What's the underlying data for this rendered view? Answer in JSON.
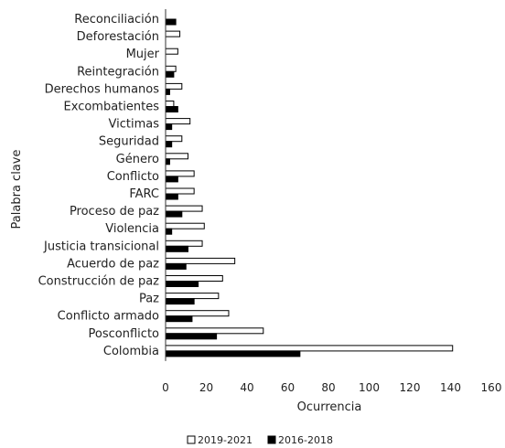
{
  "chart_data": {
    "type": "bar",
    "orientation": "horizontal",
    "title": "",
    "xlabel": "Ocurrencia",
    "ylabel": "Palabra clave",
    "xlim": [
      0,
      160
    ],
    "xticks": [
      0,
      20,
      40,
      60,
      80,
      100,
      120,
      140,
      160
    ],
    "grid": false,
    "legend_position": "bottom",
    "categories": [
      "Reconciliación",
      "Deforestación",
      "Mujer",
      "Reintegración",
      "Derechos humanos",
      "Excombatientes",
      "Victimas",
      "Seguridad",
      "Género",
      "Conflicto",
      "FARC",
      "Proceso de paz",
      "Violencia",
      "Justicia transicional",
      "Acuerdo de paz",
      "Construcción de paz",
      "Paz",
      "Conflicto armado",
      "Posconflicto",
      "Colombia"
    ],
    "series": [
      {
        "name": "2019-2021",
        "color": "#ffffff",
        "values": [
          0,
          7,
          6,
          5,
          8,
          4,
          12,
          8,
          11,
          14,
          14,
          18,
          19,
          18,
          34,
          28,
          26,
          31,
          48,
          141
        ]
      },
      {
        "name": "2016-2018",
        "color": "#000000",
        "values": [
          5,
          0,
          0,
          4,
          2,
          6,
          3,
          3,
          2,
          6,
          6,
          8,
          3,
          11,
          10,
          16,
          14,
          13,
          25,
          66
        ]
      }
    ]
  }
}
